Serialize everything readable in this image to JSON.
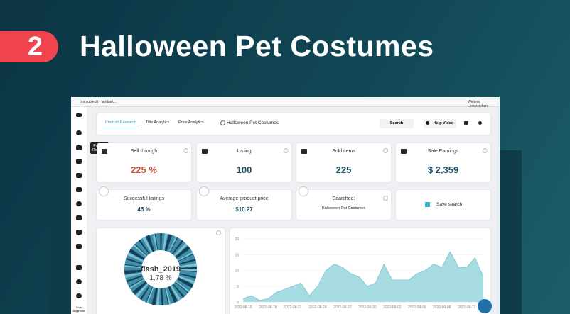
{
  "banner": {
    "number": "2",
    "title": "Halloween Pet Costumes"
  },
  "browser": {
    "tab": "(no subject) - lambari...",
    "bookmarks": "Weitere Lesezeichen"
  },
  "sidebar": {
    "tooltip": "Product Research",
    "footer": "Live Angebote"
  },
  "nav": {
    "tabs": [
      "Product Research",
      "Title Analytics",
      "Price Analytics"
    ],
    "search_query": "Halloween Pet Costumes",
    "search_button": "Search",
    "help": "Help Video"
  },
  "stats": [
    {
      "label": "Sell through",
      "value": "225 %"
    },
    {
      "label": "Listing",
      "value": "100"
    },
    {
      "label": "Sold items",
      "value": "225"
    },
    {
      "label": "Sale Earnings",
      "value": "$ 2,359"
    }
  ],
  "stats2": [
    {
      "label": "Successful listings",
      "value": "45 %"
    },
    {
      "label": "Average product price",
      "value": "$10.27"
    },
    {
      "label": "Searched:",
      "value": "Halloween Pet Costumes"
    },
    {
      "label": "Save search"
    }
  ],
  "donut": {
    "label": "flash_2019",
    "value": "1.78 %"
  },
  "chart_data": {
    "type": "area",
    "color": "#a6dbe2",
    "line_color": "#7cc6d1",
    "categories": [
      "2022-08-15",
      null,
      null,
      "2022-08-18",
      null,
      null,
      "2022-08-21",
      null,
      null,
      "2022-08-24",
      null,
      null,
      "2022-08-27",
      null,
      null,
      "2022-08-30",
      null,
      null,
      "2022-09-02",
      null,
      null,
      "2022-09-05",
      null,
      null,
      "2022-09-08",
      null,
      null,
      "2022-09-11",
      null,
      null
    ],
    "values": [
      1,
      2,
      0.5,
      1,
      3,
      4,
      5,
      6,
      2,
      5,
      10,
      12,
      11,
      9,
      8,
      5,
      6,
      12,
      7,
      7,
      7,
      9,
      10,
      12,
      11,
      16,
      11,
      11,
      14,
      8
    ],
    "ylim": [
      0,
      20
    ],
    "yticks": [
      0,
      5,
      10,
      15,
      20
    ],
    "grid": true
  }
}
